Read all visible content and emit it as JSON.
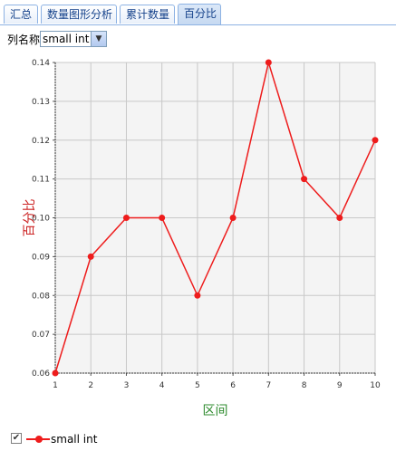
{
  "tabs": [
    {
      "label": "汇总",
      "active": false
    },
    {
      "label": "数量图形分析",
      "active": false
    },
    {
      "label": "累计数量",
      "active": false
    },
    {
      "label": "百分比",
      "active": true
    }
  ],
  "toolbar": {
    "column_label": "列名称",
    "column_value": "small int"
  },
  "legend": {
    "series_name": "small int",
    "checked": true
  },
  "colors": {
    "series": "#ee1c1c",
    "axis_title": "#2e8b2e",
    "y_title": "#cc2222",
    "plot_bg": "#f4f4f4"
  },
  "chart_data": {
    "type": "line",
    "xlabel": "区间",
    "ylabel": "百分比",
    "x": [
      1,
      2,
      3,
      4,
      5,
      6,
      7,
      8,
      9,
      10
    ],
    "series": [
      {
        "name": "small int",
        "values": [
          0.06,
          0.09,
          0.1,
          0.1,
          0.08,
          0.1,
          0.14,
          0.11,
          0.1,
          0.12
        ]
      }
    ],
    "xlim": [
      1,
      10
    ],
    "ylim": [
      0.06,
      0.14
    ],
    "yticks": [
      "0.06",
      "0.07",
      "0.08",
      "0.09",
      "0.10",
      "0.11",
      "0.12",
      "0.13",
      "0.14"
    ],
    "xticks": [
      "1",
      "2",
      "3",
      "4",
      "5",
      "6",
      "7",
      "8",
      "9",
      "10"
    ],
    "grid": true
  }
}
